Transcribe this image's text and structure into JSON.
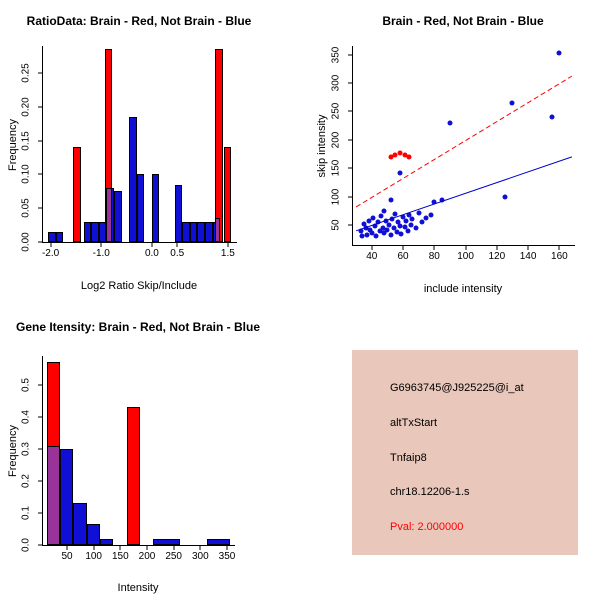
{
  "figure": {
    "bg": "#ffffff"
  },
  "info_panel": {
    "bg": "#e9c7ba",
    "probe_id": "G6963745@J925225@i_at",
    "event_type": "altTxStart",
    "gene": "Tnfaip8",
    "location": "chr18.12206-1.s",
    "pval": "Pval: 2.000000",
    "pval_color": "#ff0000"
  },
  "colors": {
    "brain": "#ff0000",
    "not_brain": "#0f0fd6",
    "overlap": "#993399"
  },
  "chart_data": [
    {
      "type": "histogram",
      "title": "RatioData: Brain - Red, Not Brain - Blue",
      "xlabel": "Log2 Ratio Skip/Include",
      "ylabel": "Frequency",
      "xlim": [
        -2.15,
        1.68
      ],
      "ylim": [
        0,
        0.29
      ],
      "xticks": [
        -2.0,
        -1.0,
        0.0,
        0.5,
        1.5
      ],
      "xtick_labels": [
        "-2.0",
        "-1.0",
        "0.0",
        "0.5",
        "1.5"
      ],
      "yticks": [
        0.0,
        0.05,
        0.1,
        0.15,
        0.2,
        0.25
      ],
      "ytick_labels": [
        "0.00",
        "0.05",
        "0.10",
        "0.15",
        "0.20",
        "0.25"
      ],
      "legend_note": "Brain - Red, Not Brain - Blue",
      "series": [
        {
          "name": "not-brain",
          "color": "#0f0fd6",
          "bars": [
            [
              -2.05,
              -1.9,
              0.015
            ],
            [
              -1.9,
              -1.75,
              0.015
            ],
            [
              -1.35,
              -1.2,
              0.03
            ],
            [
              -1.2,
              -1.05,
              0.03
            ],
            [
              -1.05,
              -0.9,
              0.03
            ],
            [
              -0.9,
              -0.75,
              0.08
            ],
            [
              -0.75,
              -0.6,
              0.075
            ],
            [
              -0.45,
              -0.3,
              0.185
            ],
            [
              -0.3,
              -0.15,
              0.1
            ],
            [
              0.0,
              0.15,
              0.1
            ],
            [
              0.45,
              0.6,
              0.085
            ],
            [
              0.6,
              0.75,
              0.03
            ],
            [
              0.75,
              0.9,
              0.03
            ],
            [
              0.9,
              1.05,
              0.03
            ],
            [
              1.05,
              1.2,
              0.03
            ],
            [
              1.2,
              1.35,
              0.03
            ]
          ]
        },
        {
          "name": "brain",
          "color": "#ff0000",
          "bars": [
            [
              -1.55,
              -1.4,
              0.14
            ],
            [
              -0.93,
              -0.78,
              0.285
            ],
            [
              1.25,
              1.4,
              0.285
            ],
            [
              1.42,
              1.57,
              0.14
            ]
          ]
        },
        {
          "name": "overlap",
          "color": "#993399",
          "bars": [
            [
              -0.9,
              -0.78,
              0.08
            ],
            [
              1.25,
              1.35,
              0.035
            ]
          ]
        }
      ]
    },
    {
      "type": "scatter",
      "title": "Brain - Red, Not Brain - Blue",
      "xlabel": "include intensity",
      "ylabel": "skip intensity",
      "xlim": [
        28,
        170
      ],
      "ylim": [
        15,
        365
      ],
      "xticks": [
        40,
        60,
        80,
        100,
        120,
        140,
        160
      ],
      "xtick_labels": [
        "40",
        "60",
        "80",
        "100",
        "120",
        "140",
        "160"
      ],
      "yticks": [
        50,
        100,
        150,
        200,
        250,
        300,
        350
      ],
      "ytick_labels": [
        "50",
        "100",
        "150",
        "200",
        "250",
        "300",
        "350"
      ],
      "series": [
        {
          "name": "not-brain",
          "color": "#0f0fd6",
          "points": [
            [
              33,
              40
            ],
            [
              34,
              30
            ],
            [
              35,
              52
            ],
            [
              36,
              45
            ],
            [
              37,
              33
            ],
            [
              38,
              58
            ],
            [
              39,
              42
            ],
            [
              40,
              36
            ],
            [
              41,
              62
            ],
            [
              42,
              48
            ],
            [
              43,
              30
            ],
            [
              44,
              55
            ],
            [
              45,
              40
            ],
            [
              46,
              66
            ],
            [
              47,
              45
            ],
            [
              48,
              36
            ],
            [
              48,
              75
            ],
            [
              49,
              58
            ],
            [
              50,
              42
            ],
            [
              51,
              50
            ],
            [
              52,
              33
            ],
            [
              52,
              95
            ],
            [
              53,
              60
            ],
            [
              54,
              45
            ],
            [
              55,
              70
            ],
            [
              56,
              38
            ],
            [
              57,
              55
            ],
            [
              58,
              142
            ],
            [
              58,
              48
            ],
            [
              59,
              35
            ],
            [
              60,
              64
            ],
            [
              61,
              46
            ],
            [
              62,
              57
            ],
            [
              63,
              40
            ],
            [
              64,
              68
            ],
            [
              65,
              50
            ],
            [
              66,
              60
            ],
            [
              68,
              45
            ],
            [
              70,
              72
            ],
            [
              72,
              55
            ],
            [
              75,
              62
            ],
            [
              78,
              68
            ],
            [
              80,
              90
            ],
            [
              85,
              95
            ],
            [
              90,
              230
            ],
            [
              125,
              100
            ],
            [
              130,
              265
            ],
            [
              155,
              240
            ],
            [
              160,
              352
            ]
          ]
        },
        {
          "name": "brain",
          "color": "#ff0000",
          "points": [
            [
              52,
              170
            ],
            [
              55,
              174
            ],
            [
              58,
              177
            ],
            [
              61,
              173
            ],
            [
              64,
              169
            ]
          ]
        }
      ],
      "lines": [
        {
          "name": "brain-fit",
          "from": [
            30,
            82
          ],
          "to": [
            168,
            312
          ],
          "color": "#ff0000",
          "style": "dashed"
        },
        {
          "name": "not-brain-fit",
          "from": [
            30,
            40
          ],
          "to": [
            168,
            170
          ],
          "color": "#0000cc",
          "style": "solid"
        }
      ]
    },
    {
      "type": "histogram",
      "title": "Gene Itensity: Brain - Red, Not Brain - Blue",
      "xlabel": "Intensity",
      "ylabel": "Frequency",
      "xlim": [
        5,
        365
      ],
      "ylim": [
        0,
        0.59
      ],
      "xticks": [
        50,
        100,
        150,
        200,
        250,
        300,
        350
      ],
      "xtick_labels": [
        "50",
        "100",
        "150",
        "200",
        "250",
        "300",
        "350"
      ],
      "yticks": [
        0.0,
        0.1,
        0.2,
        0.3,
        0.4,
        0.5
      ],
      "ytick_labels": [
        "0.0",
        "0.1",
        "0.2",
        "0.3",
        "0.4",
        "0.5"
      ],
      "series": [
        {
          "name": "not-brain",
          "color": "#0f0fd6",
          "bars": [
            [
              12,
              37,
              0.31
            ],
            [
              37,
              62,
              0.3
            ],
            [
              62,
              87,
              0.13
            ],
            [
              87,
              112,
              0.065
            ],
            [
              112,
              137,
              0.02
            ],
            [
              212,
              262,
              0.02
            ],
            [
              312,
              355,
              0.02
            ]
          ]
        },
        {
          "name": "brain",
          "color": "#ff0000",
          "bars": [
            [
              12,
              37,
              0.57
            ],
            [
              162,
              187,
              0.43
            ]
          ]
        },
        {
          "name": "overlap",
          "color": "#993399",
          "bars": [
            [
              12,
              37,
              0.31
            ]
          ]
        }
      ]
    }
  ]
}
